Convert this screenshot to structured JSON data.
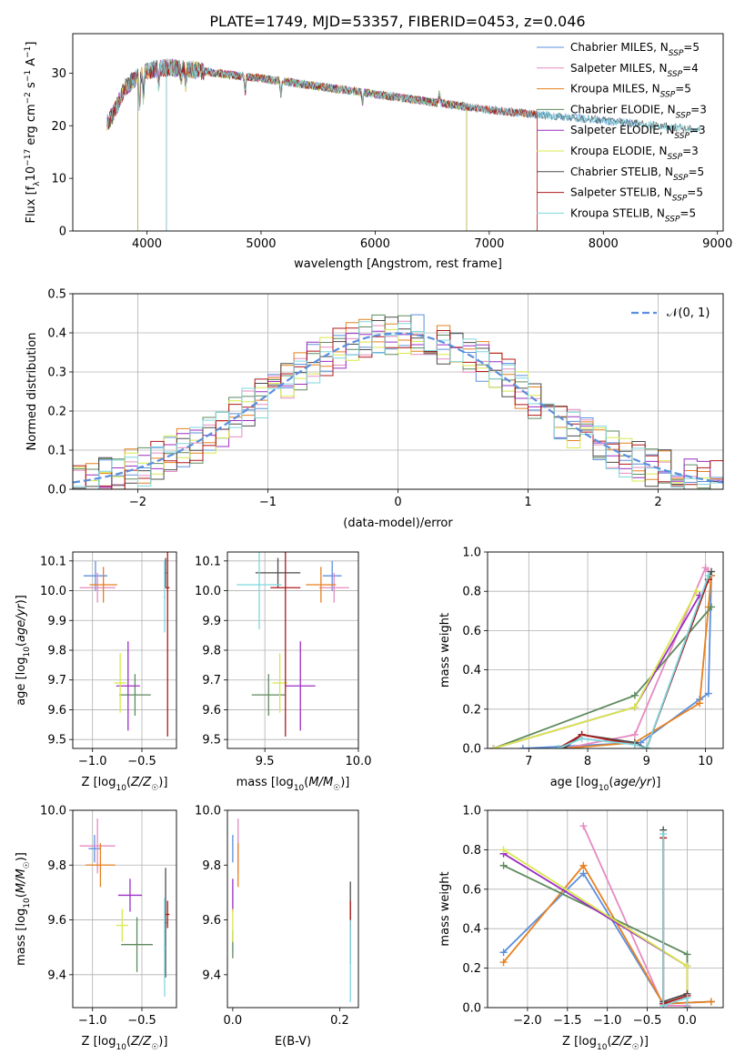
{
  "figure": {
    "title": "PLATE=1749, MJD=53357, FIBERID=0453, z=0.046"
  },
  "palette": {
    "Chabrier MILES": "#5b8fde",
    "Salpeter MILES": "#e68ac0",
    "Kroupa MILES": "#e6801f",
    "Chabrier ELODIE": "#5e8a5e",
    "Salpeter ELODIE": "#9c2ec4",
    "Kroupa ELODIE": "#d8e84a",
    "Chabrier STELIB": "#4d4d4d",
    "Salpeter STELIB": "#b01818",
    "Kroupa STELIB": "#7fd6de",
    "gaussian": "#5b8fde",
    "grid": "#b0b0b0"
  },
  "chart_data": [
    {
      "id": "spectrum",
      "type": "line",
      "xlabel": "wavelength [Angstrom, rest frame]",
      "ylabel": "Flux [f_λ10^-17 erg cm^-2 s^-1 A^-1]",
      "xlim": [
        3350,
        9050
      ],
      "ylim": [
        0,
        37.5
      ],
      "xticks": [
        4000,
        5000,
        6000,
        7000,
        8000,
        9000
      ],
      "yticks": [
        0,
        10,
        20,
        30
      ],
      "grid": false,
      "legend_position": "upper-right",
      "continuum": [
        [
          3600,
          19
        ],
        [
          3700,
          22
        ],
        [
          3800,
          27
        ],
        [
          3950,
          30
        ],
        [
          4100,
          31
        ],
        [
          4300,
          31
        ],
        [
          4600,
          30
        ],
        [
          5000,
          29
        ],
        [
          5500,
          27.5
        ],
        [
          6000,
          26
        ],
        [
          6500,
          24.5
        ],
        [
          7000,
          23
        ],
        [
          7500,
          22
        ],
        [
          8000,
          21
        ],
        [
          8500,
          20
        ],
        [
          8850,
          19.3
        ]
      ],
      "series": [
        {
          "name": "Chabrier MILES",
          "legend": "Chabrier MILES, N_SSP=5",
          "extent": [
            3650,
            8300
          ],
          "dropouts": []
        },
        {
          "name": "Salpeter MILES",
          "legend": "Salpeter MILES, N_SSP=4",
          "extent": [
            3650,
            7420
          ],
          "dropouts": [
            7420
          ]
        },
        {
          "name": "Kroupa MILES",
          "legend": "Kroupa MILES, N_SSP=5",
          "extent": [
            3650,
            7420
          ],
          "dropouts": [
            7420
          ]
        },
        {
          "name": "Chabrier ELODIE",
          "legend": "Chabrier ELODIE, N_SSP=3",
          "extent": [
            3650,
            6800
          ],
          "dropouts": [
            3920,
            6800
          ]
        },
        {
          "name": "Salpeter ELODIE",
          "legend": "Salpeter ELODIE, N_SSP=3",
          "extent": [
            3650,
            6800
          ],
          "dropouts": [
            3920,
            6800
          ]
        },
        {
          "name": "Kroupa ELODIE",
          "legend": "Kroupa ELODIE, N_SSP=3",
          "extent": [
            3650,
            6800
          ],
          "dropouts": [
            3920,
            6800
          ]
        },
        {
          "name": "Chabrier STELIB",
          "legend": "Chabrier STELIB, N_SSP=5",
          "extent": [
            3650,
            8850
          ],
          "dropouts": [
            4170
          ]
        },
        {
          "name": "Salpeter STELIB",
          "legend": "Salpeter STELIB, N_SSP=5",
          "extent": [
            3650,
            7420
          ],
          "dropouts": [
            7420
          ]
        },
        {
          "name": "Kroupa STELIB",
          "legend": "Kroupa STELIB, N_SSP=5",
          "extent": [
            3650,
            8850
          ],
          "dropouts": [
            4170
          ]
        }
      ]
    },
    {
      "id": "residuals",
      "type": "histogram",
      "xlabel": "(data-model)/error",
      "ylabel": "Normed distribution",
      "xlim": [
        -2.5,
        2.5
      ],
      "ylim": [
        0,
        0.5
      ],
      "xticks": [
        -2,
        -1,
        0,
        1,
        2
      ],
      "yticks": [
        0.0,
        0.1,
        0.2,
        0.3,
        0.4,
        0.5
      ],
      "grid": true,
      "bin_width": 0.1,
      "reference": {
        "name": "𝒩(0, 1)",
        "mu": 0,
        "sigma": 1
      }
    },
    {
      "id": "age_vs_Z",
      "type": "errorbar",
      "xlabel": "Z [log10(Z/Z☉)]",
      "ylabel": "age [log10(age/yr)]",
      "xlim": [
        -1.2,
        -0.15
      ],
      "ylim": [
        9.47,
        10.13
      ],
      "xticks": [
        -1.0,
        -0.5
      ],
      "yticks": [
        9.5,
        9.6,
        9.7,
        9.8,
        9.9,
        10.0,
        10.1
      ],
      "grid": true,
      "points": [
        {
          "series": "Chabrier MILES",
          "x": -0.97,
          "y": 10.05,
          "xerr": 0.12,
          "yerr": 0.05
        },
        {
          "series": "Salpeter MILES",
          "x": -0.95,
          "y": 10.01,
          "xerr": 0.18,
          "yerr": 0.05
        },
        {
          "series": "Kroupa MILES",
          "x": -0.89,
          "y": 10.02,
          "xerr": 0.14,
          "yerr": 0.06
        },
        {
          "series": "Chabrier ELODIE",
          "x": -0.57,
          "y": 9.65,
          "xerr": 0.16,
          "yerr": 0.07
        },
        {
          "series": "Salpeter ELODIE",
          "x": -0.64,
          "y": 9.68,
          "xerr": 0.12,
          "yerr": 0.15
        },
        {
          "series": "Kroupa ELODIE",
          "x": -0.72,
          "y": 9.69,
          "xerr": 0.06,
          "yerr": 0.1
        },
        {
          "series": "Chabrier STELIB",
          "x": -0.26,
          "y": 10.06,
          "xerr": 0.01,
          "yerr": 0.05
        },
        {
          "series": "Salpeter STELIB",
          "x": -0.24,
          "y": 10.01,
          "xerr": 0.02,
          "yerr": 0.5
        },
        {
          "series": "Kroupa STELIB",
          "x": -0.27,
          "y": 9.98,
          "xerr": 0.01,
          "yerr": 0.12
        }
      ]
    },
    {
      "id": "age_vs_mass",
      "type": "errorbar",
      "xlabel": "mass [log10(M/M☉)]",
      "ylabel": "",
      "xlim": [
        9.3,
        10.0
      ],
      "ylim": [
        9.47,
        10.13
      ],
      "xticks": [
        9.5,
        10.0
      ],
      "yticks": [
        9.5,
        9.6,
        9.7,
        9.8,
        9.9,
        10.0,
        10.1
      ],
      "grid": true,
      "points": [
        {
          "series": "Chabrier MILES",
          "x": 9.86,
          "y": 10.05,
          "xerr": 0.05,
          "yerr": 0.05
        },
        {
          "series": "Salpeter MILES",
          "x": 9.87,
          "y": 10.01,
          "xerr": 0.08,
          "yerr": 0.05
        },
        {
          "series": "Kroupa MILES",
          "x": 9.8,
          "y": 10.02,
          "xerr": 0.08,
          "yerr": 0.06
        },
        {
          "series": "Chabrier ELODIE",
          "x": 9.52,
          "y": 9.65,
          "xerr": 0.09,
          "yerr": 0.07
        },
        {
          "series": "Salpeter ELODIE",
          "x": 9.69,
          "y": 9.68,
          "xerr": 0.08,
          "yerr": 0.15
        },
        {
          "series": "Kroupa ELODIE",
          "x": 9.58,
          "y": 9.69,
          "xerr": 0.04,
          "yerr": 0.1
        },
        {
          "series": "Chabrier STELIB",
          "x": 9.57,
          "y": 10.06,
          "xerr": 0.12,
          "yerr": 0.05
        },
        {
          "series": "Salpeter STELIB",
          "x": 9.61,
          "y": 10.01,
          "xerr": 0.08,
          "yerr": 0.5
        },
        {
          "series": "Kroupa STELIB",
          "x": 9.47,
          "y": 10.02,
          "xerr": 0.12,
          "yerr": 0.15
        }
      ]
    },
    {
      "id": "massweight_vs_age",
      "type": "line",
      "xlabel": "age [log10(age/yr)]",
      "ylabel": "mass weight",
      "xlim": [
        6.3,
        10.3
      ],
      "ylim": [
        0,
        1.0
      ],
      "xticks": [
        7,
        8,
        9,
        10
      ],
      "yticks": [
        0.0,
        0.2,
        0.4,
        0.6,
        0.8,
        1.0
      ],
      "grid": true,
      "series": [
        {
          "name": "Chabrier MILES",
          "x": [
            6.9,
            8.9,
            9.9,
            10.05,
            10.1
          ],
          "y": [
            0.0,
            0.03,
            0.25,
            0.28,
            0.88
          ]
        },
        {
          "name": "Salpeter MILES",
          "x": [
            7.6,
            8.8,
            10.0,
            10.05
          ],
          "y": [
            0.0,
            0.07,
            0.92,
            0.9
          ]
        },
        {
          "name": "Kroupa MILES",
          "x": [
            7.6,
            8.8,
            9.9,
            10.05,
            10.1
          ],
          "y": [
            0.0,
            0.03,
            0.23,
            0.72,
            0.88
          ]
        },
        {
          "name": "Chabrier ELODIE",
          "x": [
            6.4,
            8.8,
            10.1
          ],
          "y": [
            0.0,
            0.27,
            0.72
          ]
        },
        {
          "name": "Salpeter ELODIE",
          "x": [
            6.4,
            8.8,
            9.9
          ],
          "y": [
            0.0,
            0.21,
            0.78
          ]
        },
        {
          "name": "Kroupa ELODIE",
          "x": [
            6.4,
            8.8,
            9.85
          ],
          "y": [
            0.0,
            0.21,
            0.8
          ]
        },
        {
          "name": "Chabrier STELIB",
          "x": [
            7.6,
            7.9,
            8.8,
            9.0,
            10.1
          ],
          "y": [
            0.0,
            0.07,
            0.03,
            0.0,
            0.9
          ]
        },
        {
          "name": "Salpeter STELIB",
          "x": [
            7.5,
            7.9,
            8.8,
            9.0,
            10.05
          ],
          "y": [
            0.0,
            0.07,
            0.02,
            0.0,
            0.86
          ]
        },
        {
          "name": "Kroupa STELIB",
          "x": [
            7.5,
            7.9,
            8.8,
            9.0,
            10.05
          ],
          "y": [
            0.0,
            0.05,
            0.02,
            0.0,
            0.88
          ]
        }
      ]
    },
    {
      "id": "mass_vs_Z",
      "type": "errorbar",
      "xlabel": "Z [log10(Z/Z☉)]",
      "ylabel": "mass [log10(M/M☉)]",
      "xlim": [
        -1.2,
        -0.15
      ],
      "ylim": [
        9.28,
        10.0
      ],
      "xticks": [
        -1.0,
        -0.5
      ],
      "yticks": [
        9.4,
        9.6,
        9.8,
        10.0
      ],
      "grid": true,
      "points": [
        {
          "series": "Chabrier MILES",
          "x": -0.98,
          "y": 9.86,
          "xerr": 0.06,
          "yerr": 0.05
        },
        {
          "series": "Salpeter MILES",
          "x": -0.95,
          "y": 9.87,
          "xerr": 0.18,
          "yerr": 0.1
        },
        {
          "series": "Kroupa MILES",
          "x": -0.92,
          "y": 9.8,
          "xerr": 0.15,
          "yerr": 0.08
        },
        {
          "series": "Chabrier ELODIE",
          "x": -0.55,
          "y": 9.51,
          "xerr": 0.16,
          "yerr": 0.1
        },
        {
          "series": "Salpeter ELODIE",
          "x": -0.62,
          "y": 9.69,
          "xerr": 0.12,
          "yerr": 0.06
        },
        {
          "series": "Kroupa ELODIE",
          "x": -0.7,
          "y": 9.58,
          "xerr": 0.06,
          "yerr": 0.06
        },
        {
          "series": "Chabrier STELIB",
          "x": -0.26,
          "y": 9.59,
          "xerr": 0.01,
          "yerr": 0.2
        },
        {
          "series": "Salpeter STELIB",
          "x": -0.24,
          "y": 9.62,
          "xerr": 0.02,
          "yerr": 0.05
        },
        {
          "series": "Kroupa STELIB",
          "x": -0.27,
          "y": 9.5,
          "xerr": 0.01,
          "yerr": 0.18
        }
      ]
    },
    {
      "id": "mass_vs_EBV",
      "type": "errorbar",
      "xlabel": "E(B-V)",
      "ylabel": "",
      "xlim": [
        -0.01,
        0.235
      ],
      "ylim": [
        9.28,
        10.0
      ],
      "xticks": [
        0.0,
        0.2
      ],
      "yticks": [
        9.4,
        9.6,
        9.8,
        10.0
      ],
      "grid": false,
      "points": [
        {
          "series": "Chabrier MILES",
          "x": 0.0,
          "y": 9.86,
          "xerr": 0.0,
          "yerr": 0.05
        },
        {
          "series": "Salpeter MILES",
          "x": 0.01,
          "y": 9.87,
          "xerr": 0.0,
          "yerr": 0.1
        },
        {
          "series": "Kroupa MILES",
          "x": 0.01,
          "y": 9.8,
          "xerr": 0.0,
          "yerr": 0.08
        },
        {
          "series": "Chabrier ELODIE",
          "x": 0.0,
          "y": 9.51,
          "xerr": 0.0,
          "yerr": 0.05
        },
        {
          "series": "Salpeter ELODIE",
          "x": 0.0,
          "y": 9.69,
          "xerr": 0.0,
          "yerr": 0.06
        },
        {
          "series": "Kroupa ELODIE",
          "x": 0.0,
          "y": 9.58,
          "xerr": 0.0,
          "yerr": 0.06
        },
        {
          "series": "Chabrier STELIB",
          "x": 0.22,
          "y": 9.59,
          "xerr": 0.0,
          "yerr": 0.15
        },
        {
          "series": "Salpeter STELIB",
          "x": 0.22,
          "y": 9.62,
          "xerr": 0.0,
          "yerr": 0.05
        },
        {
          "series": "Kroupa STELIB",
          "x": 0.22,
          "y": 9.45,
          "xerr": 0.0,
          "yerr": 0.15
        }
      ]
    },
    {
      "id": "massweight_vs_Z",
      "type": "line",
      "xlabel": "Z [log10(Z/Z☉)]",
      "ylabel": "mass weight",
      "xlim": [
        -2.5,
        0.45
      ],
      "ylim": [
        0,
        1.0
      ],
      "xticks": [
        -2.0,
        -1.5,
        -1.0,
        -0.5,
        0.0
      ],
      "yticks": [
        0.0,
        0.2,
        0.4,
        0.6,
        0.8,
        1.0
      ],
      "grid": true,
      "series": [
        {
          "name": "Chabrier MILES",
          "x": [
            -2.3,
            -1.3,
            -0.3,
            0.3
          ],
          "y": [
            0.28,
            0.68,
            0.02,
            0.03
          ]
        },
        {
          "name": "Salpeter MILES",
          "x": [
            -1.3,
            -0.3,
            0.0
          ],
          "y": [
            0.92,
            0.01,
            0.01
          ]
        },
        {
          "name": "Kroupa MILES",
          "x": [
            -2.3,
            -1.3,
            -0.3,
            0.3
          ],
          "y": [
            0.23,
            0.72,
            0.02,
            0.03
          ]
        },
        {
          "name": "Chabrier ELODIE",
          "x": [
            -2.3,
            0.0,
            0.0
          ],
          "y": [
            0.72,
            0.27,
            0.0
          ]
        },
        {
          "name": "Salpeter ELODIE",
          "x": [
            -2.3,
            0.0,
            0.0
          ],
          "y": [
            0.78,
            0.21,
            0.0
          ]
        },
        {
          "name": "Kroupa ELODIE",
          "x": [
            -2.3,
            0.0,
            0.0
          ],
          "y": [
            0.8,
            0.21,
            0.0
          ]
        },
        {
          "name": "Chabrier STELIB",
          "x": [
            -0.3,
            -0.3,
            0.0,
            0.0
          ],
          "y": [
            0.9,
            0.03,
            0.07,
            0.0
          ]
        },
        {
          "name": "Salpeter STELIB",
          "x": [
            -0.3,
            -0.3,
            0.0,
            0.0
          ],
          "y": [
            0.86,
            0.02,
            0.06,
            0.0
          ]
        },
        {
          "name": "Kroupa STELIB",
          "x": [
            -0.3,
            -0.3,
            0.0,
            0.0
          ],
          "y": [
            0.88,
            0.01,
            0.05,
            0.0
          ]
        }
      ]
    }
  ]
}
